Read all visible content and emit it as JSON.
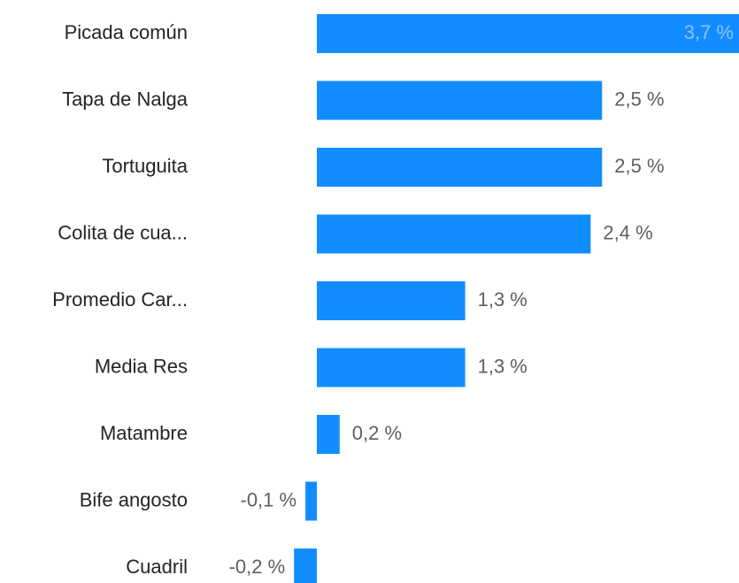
{
  "chart_data": {
    "type": "bar",
    "orientation": "horizontal",
    "color": "#118dff",
    "categories": [
      "Picada común",
      "Tapa de Nalga",
      "Tortuguita",
      "Colita de cua...",
      "Promedio Car...",
      "Media Res",
      "Matambre",
      "Bife angosto",
      "Cuadril"
    ],
    "values": [
      3.7,
      2.5,
      2.5,
      2.4,
      1.3,
      1.3,
      0.2,
      -0.1,
      -0.2
    ],
    "value_labels": [
      "3,7 %",
      "2,5 %",
      "2,5 %",
      "2,4 %",
      "1,3 %",
      "1,3 %",
      "0,2 %",
      "-0,1 %",
      "-0,2 %"
    ]
  }
}
